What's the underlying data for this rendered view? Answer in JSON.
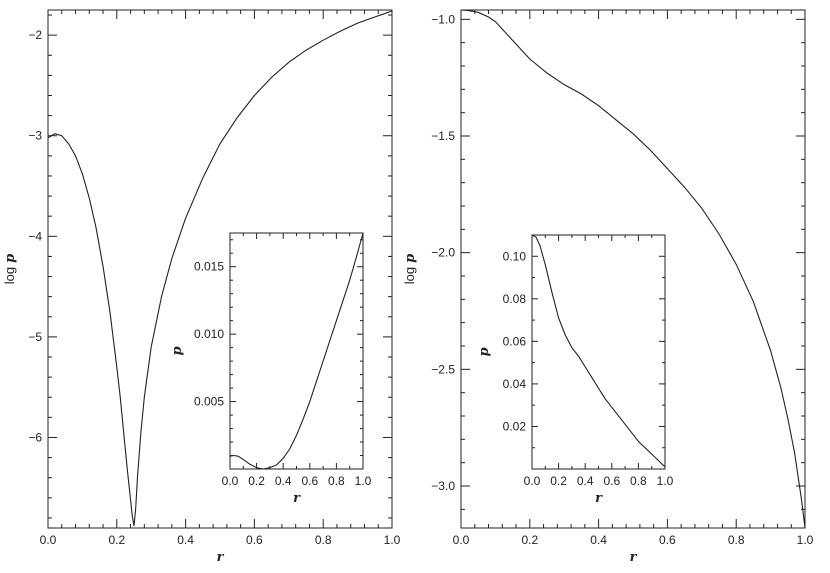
{
  "chart_data": [
    {
      "id": "left-main",
      "type": "line",
      "xlabel": "r",
      "ylabel": "log p",
      "ylabel_prefix": "log",
      "ylabel_var": "p",
      "xlim": [
        0.0,
        1.0
      ],
      "ylim": [
        -6.9,
        -1.75
      ],
      "xticks": [
        0.0,
        0.2,
        0.4,
        0.6,
        0.8,
        1.0
      ],
      "xtick_labels": [
        "0.0",
        "0.2",
        "0.4",
        "0.6",
        "0.8",
        "1.0"
      ],
      "yticks": [
        -6,
        -5,
        -4,
        -3,
        -2
      ],
      "ytick_labels": [
        "−6",
        "−5",
        "−4",
        "−3",
        "−2"
      ],
      "series": [
        {
          "x": [
            0.0,
            0.02,
            0.04,
            0.06,
            0.08,
            0.1,
            0.12,
            0.14,
            0.16,
            0.18,
            0.2,
            0.21,
            0.22,
            0.23,
            0.24,
            0.245,
            0.25,
            0.255,
            0.26,
            0.27,
            0.28,
            0.3,
            0.33,
            0.36,
            0.4,
            0.45,
            0.5,
            0.55,
            0.6,
            0.65,
            0.7,
            0.75,
            0.8,
            0.85,
            0.9,
            0.95,
            1.0
          ],
          "y": [
            -3.02,
            -2.98,
            -3.0,
            -3.08,
            -3.2,
            -3.38,
            -3.62,
            -3.92,
            -4.3,
            -4.75,
            -5.3,
            -5.6,
            -5.95,
            -6.3,
            -6.62,
            -6.78,
            -6.88,
            -6.7,
            -6.4,
            -5.95,
            -5.6,
            -5.1,
            -4.6,
            -4.22,
            -3.82,
            -3.42,
            -3.08,
            -2.82,
            -2.6,
            -2.42,
            -2.27,
            -2.15,
            -2.05,
            -1.96,
            -1.88,
            -1.82,
            -1.76
          ]
        }
      ]
    },
    {
      "id": "left-inset",
      "type": "line",
      "xlabel": "r",
      "ylabel": "p",
      "xlim": [
        0.0,
        1.0
      ],
      "ylim": [
        0.0,
        0.0175
      ],
      "xticks": [
        0.0,
        0.2,
        0.4,
        0.6,
        0.8,
        1.0
      ],
      "xtick_labels": [
        "0.0",
        "0.2",
        "0.4",
        "0.6",
        "0.8",
        "1.0"
      ],
      "yticks": [
        0.005,
        0.01,
        0.015
      ],
      "ytick_labels": [
        "0.005",
        "0.010",
        "0.015"
      ],
      "series": [
        {
          "x": [
            0.0,
            0.03,
            0.06,
            0.1,
            0.15,
            0.2,
            0.25,
            0.3,
            0.35,
            0.4,
            0.45,
            0.5,
            0.55,
            0.6,
            0.65,
            0.7,
            0.75,
            0.8,
            0.85,
            0.9,
            0.95,
            1.0
          ],
          "y": [
            0.00095,
            0.001,
            0.00095,
            0.0007,
            0.00035,
            0.0001,
            0.0,
            0.0001,
            0.0003,
            0.0008,
            0.0015,
            0.0025,
            0.0037,
            0.005,
            0.0065,
            0.008,
            0.0095,
            0.011,
            0.0125,
            0.014,
            0.0157,
            0.0175
          ]
        }
      ]
    },
    {
      "id": "right-main",
      "type": "line",
      "xlabel": "r",
      "ylabel": "log p",
      "ylabel_prefix": "log",
      "ylabel_var": "p",
      "xlim": [
        0.0,
        1.0
      ],
      "ylim": [
        -3.18,
        -0.96
      ],
      "xticks": [
        0.0,
        0.2,
        0.4,
        0.6,
        0.8,
        1.0
      ],
      "xtick_labels": [
        "0.0",
        "0.2",
        "0.4",
        "0.6",
        "0.8",
        "1.0"
      ],
      "yticks": [
        -3.0,
        -2.5,
        -2.0,
        -1.5,
        -1.0
      ],
      "ytick_labels": [
        "−3.0",
        "−2.5",
        "−2.0",
        "−1.5",
        "−1.0"
      ],
      "series": [
        {
          "x": [
            0.0,
            0.02,
            0.05,
            0.08,
            0.1,
            0.15,
            0.2,
            0.25,
            0.3,
            0.35,
            0.4,
            0.45,
            0.5,
            0.55,
            0.6,
            0.65,
            0.7,
            0.75,
            0.8,
            0.85,
            0.9,
            0.93,
            0.95,
            0.97,
            0.98,
            0.99,
            1.0
          ],
          "y": [
            -0.96,
            -0.962,
            -0.97,
            -0.99,
            -1.01,
            -1.09,
            -1.17,
            -1.23,
            -1.28,
            -1.32,
            -1.37,
            -1.43,
            -1.49,
            -1.56,
            -1.64,
            -1.72,
            -1.81,
            -1.92,
            -2.05,
            -2.21,
            -2.42,
            -2.58,
            -2.71,
            -2.86,
            -2.96,
            -3.06,
            -3.18
          ]
        }
      ]
    },
    {
      "id": "right-inset",
      "type": "line",
      "xlabel": "r",
      "ylabel": "p",
      "xlim": [
        0.0,
        1.0
      ],
      "ylim": [
        0.0,
        0.11
      ],
      "xticks": [
        0.0,
        0.2,
        0.4,
        0.6,
        0.8,
        1.0
      ],
      "xtick_labels": [
        "0.0",
        "0.2",
        "0.4",
        "0.6",
        "0.8",
        "1.0"
      ],
      "yticks": [
        0.02,
        0.04,
        0.06,
        0.08,
        0.1
      ],
      "ytick_labels": [
        "0.02",
        "0.04",
        "0.06",
        "0.08",
        "0.10"
      ],
      "series": [
        {
          "x": [
            0.0,
            0.03,
            0.06,
            0.1,
            0.15,
            0.2,
            0.25,
            0.3,
            0.35,
            0.4,
            0.45,
            0.5,
            0.55,
            0.6,
            0.65,
            0.7,
            0.75,
            0.8,
            0.85,
            0.9,
            0.95,
            1.0
          ],
          "y": [
            0.11,
            0.109,
            0.105,
            0.096,
            0.083,
            0.071,
            0.063,
            0.057,
            0.053,
            0.048,
            0.043,
            0.038,
            0.033,
            0.029,
            0.025,
            0.021,
            0.017,
            0.013,
            0.01,
            0.007,
            0.004,
            0.001
          ]
        }
      ]
    }
  ]
}
